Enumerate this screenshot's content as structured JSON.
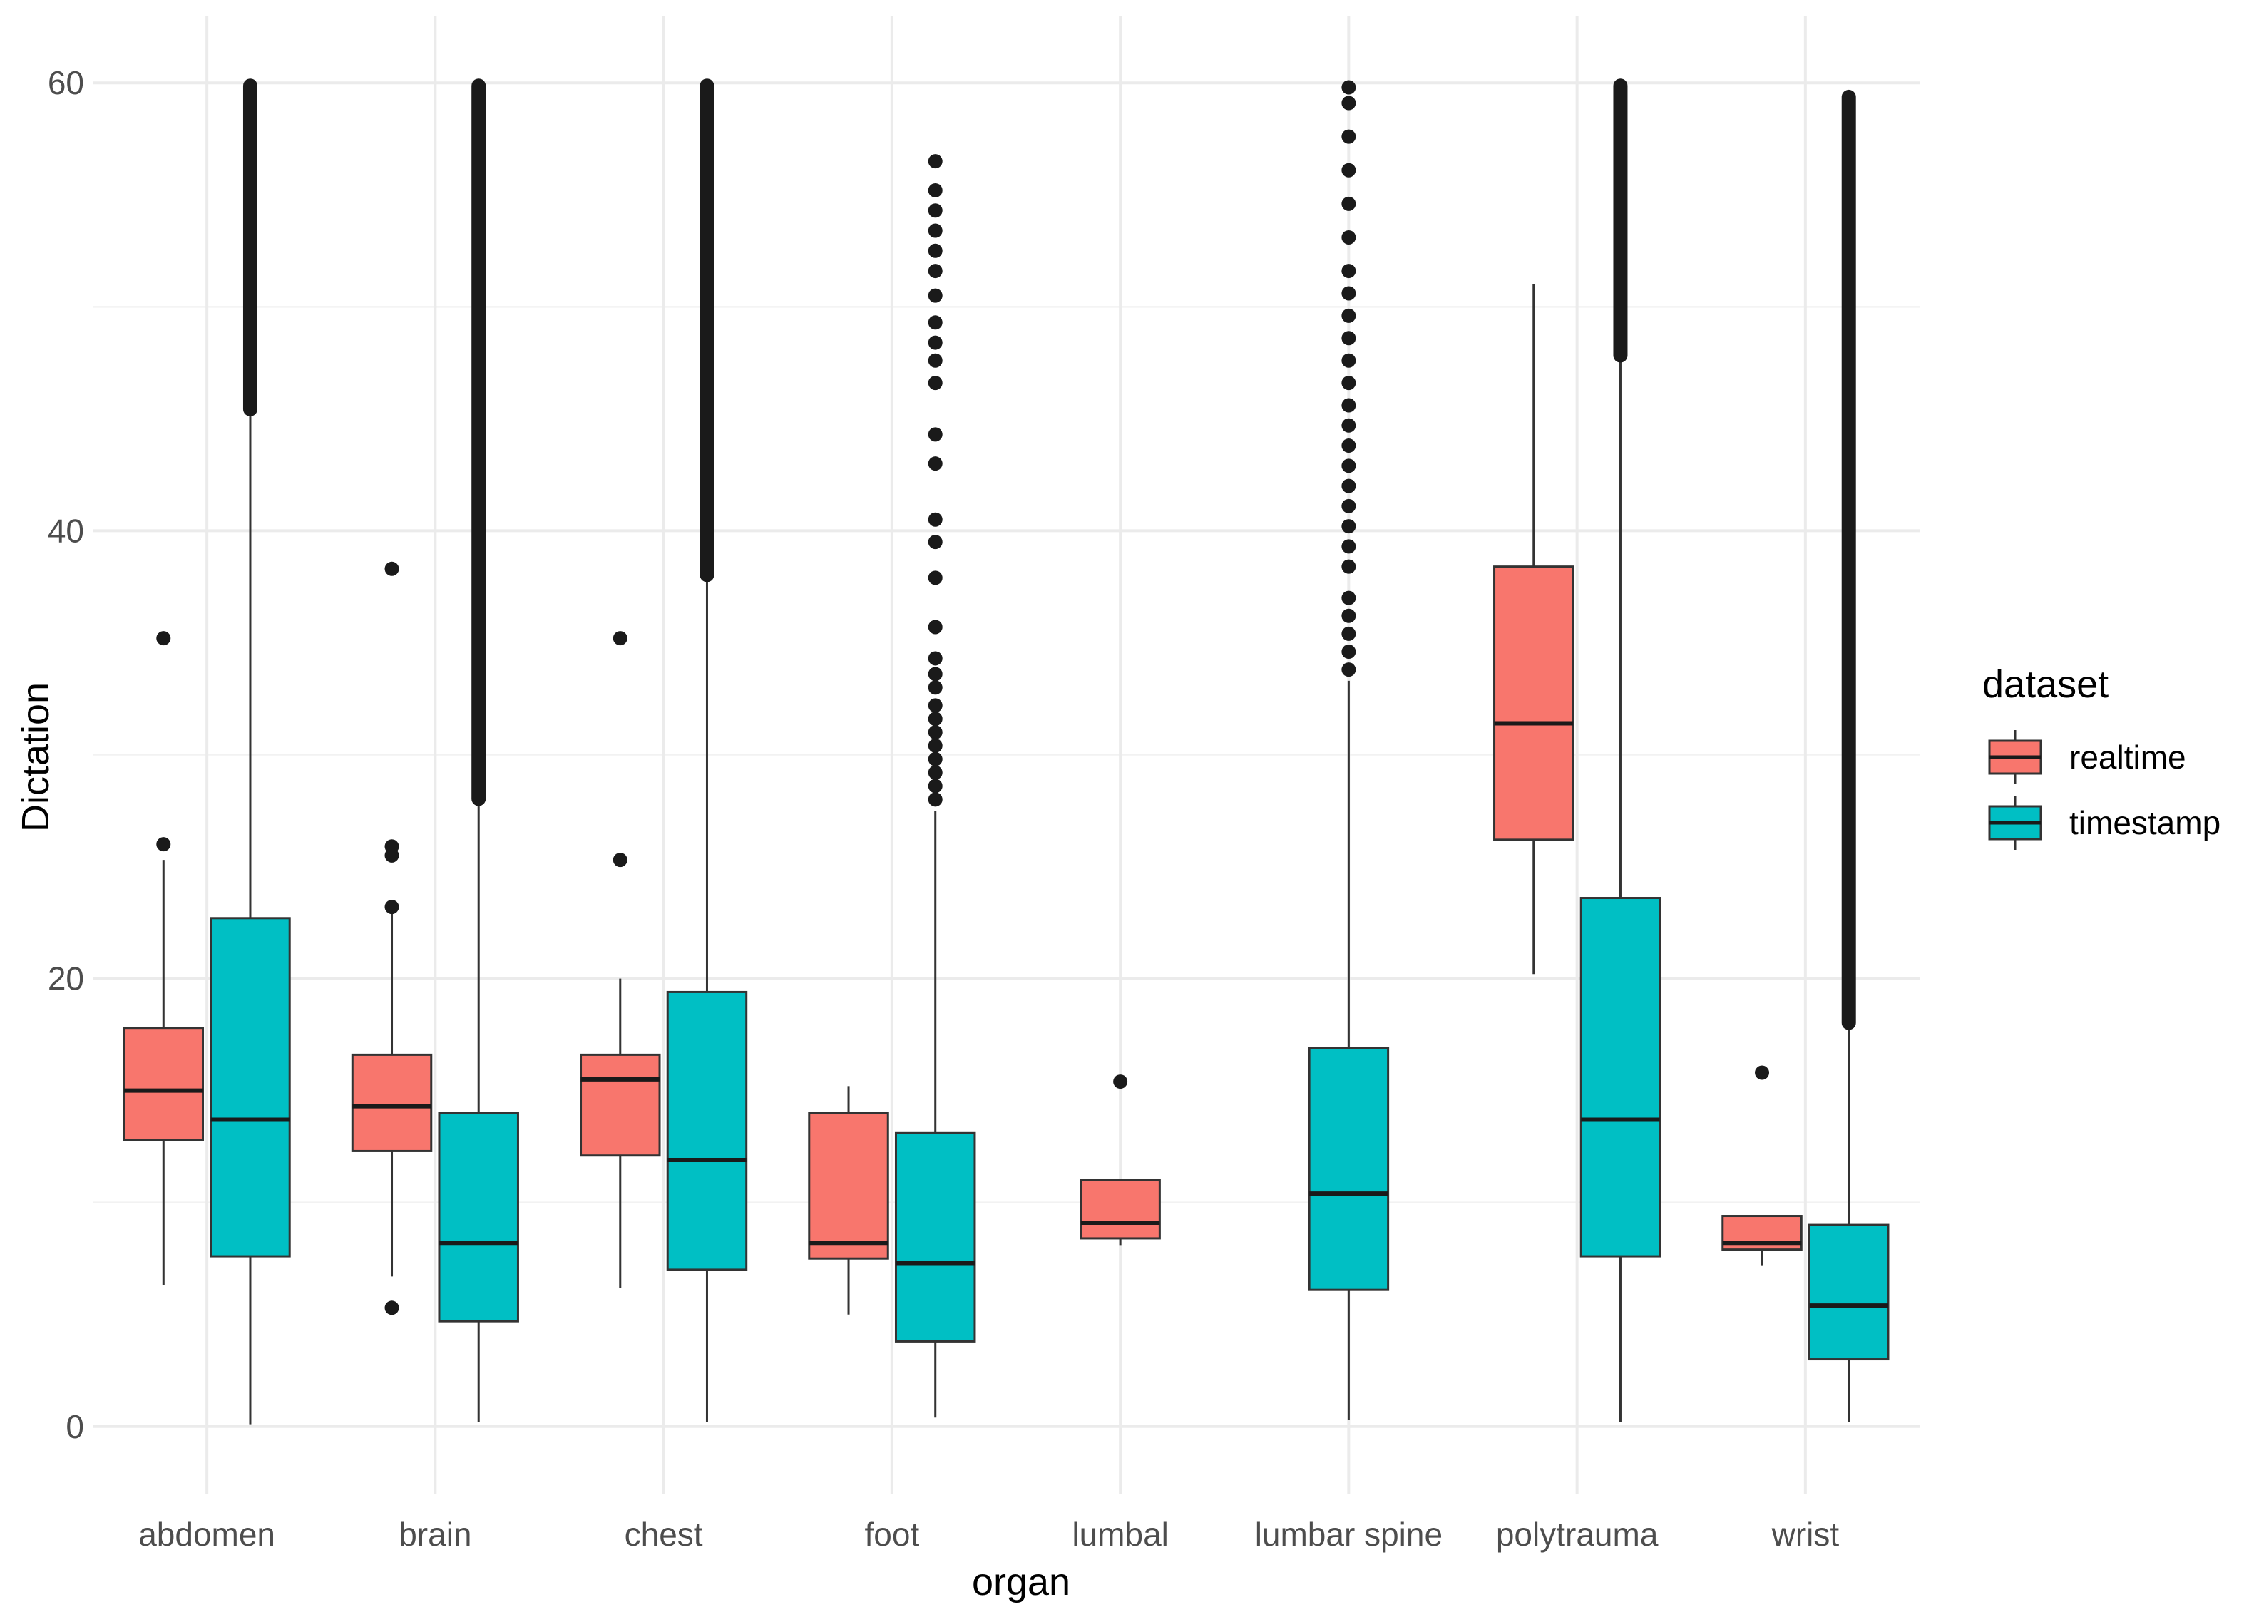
{
  "chart_data": {
    "type": "boxplot",
    "title": "",
    "xlabel": "organ",
    "ylabel": "Dictation",
    "ylim": [
      -3,
      63
    ],
    "yticks": [
      0,
      20,
      40,
      60
    ],
    "grid": true,
    "legend_position": "right",
    "legend": {
      "title": "dataset",
      "entries": [
        {
          "name": "realtime",
          "color": "#F8766D"
        },
        {
          "name": "timestamp",
          "color": "#00BFC4"
        }
      ]
    },
    "categories": [
      "abdomen",
      "brain",
      "chest",
      "foot",
      "lumbal",
      "lumbar spine",
      "polytrauma",
      "wrist"
    ],
    "series": [
      {
        "name": "realtime",
        "color": "#F8766D",
        "boxes": [
          {
            "category": "abdomen",
            "min": 6.3,
            "q1": 12.8,
            "median": 15.0,
            "q3": 17.8,
            "max": 25.3,
            "outliers": [
              26.0,
              35.2
            ]
          },
          {
            "category": "brain",
            "min": 6.7,
            "q1": 12.3,
            "median": 14.3,
            "q3": 16.6,
            "max": 23.2,
            "outliers": [
              5.3,
              23.2,
              25.5,
              25.9,
              38.3
            ]
          },
          {
            "category": "chest",
            "min": 6.2,
            "q1": 12.1,
            "median": 15.5,
            "q3": 16.6,
            "max": 20.0,
            "outliers": [
              25.3,
              35.2
            ]
          },
          {
            "category": "foot",
            "min": 5.0,
            "q1": 7.5,
            "median": 8.2,
            "q3": 14.0,
            "max": 15.2,
            "outliers": []
          },
          {
            "category": "lumbal",
            "min": 8.1,
            "q1": 8.4,
            "median": 9.1,
            "q3": 11.0,
            "max": 11.0,
            "outliers": [
              15.4
            ]
          },
          {
            "category": "polytrauma",
            "min": 20.2,
            "q1": 26.2,
            "median": 31.4,
            "q3": 38.4,
            "max": 51.0,
            "outliers": []
          },
          {
            "category": "wrist",
            "min": 7.2,
            "q1": 7.9,
            "median": 8.2,
            "q3": 9.4,
            "max": 9.4,
            "outliers": [
              15.8
            ]
          }
        ]
      },
      {
        "name": "timestamp",
        "color": "#00BFC4",
        "boxes": [
          {
            "category": "abdomen",
            "min": 0.1,
            "q1": 7.6,
            "median": 13.7,
            "q3": 22.7,
            "max": 45.3,
            "outliers_dense_range": [
              45.3,
              60
            ]
          },
          {
            "category": "brain",
            "min": 0.2,
            "q1": 4.7,
            "median": 8.2,
            "q3": 14.0,
            "max": 27.9,
            "outliers_dense_range": [
              27.9,
              60
            ]
          },
          {
            "category": "chest",
            "min": 0.2,
            "q1": 7.0,
            "median": 11.9,
            "q3": 19.4,
            "max": 37.9,
            "outliers_dense_range": [
              37.9,
              60
            ]
          },
          {
            "category": "foot",
            "min": 0.4,
            "q1": 3.8,
            "median": 7.3,
            "q3": 13.1,
            "max": 27.5,
            "outliers": [
              28.0,
              28.6,
              29.2,
              29.8,
              30.4,
              31.0,
              31.6,
              32.2,
              33.0,
              33.6,
              34.3,
              35.7,
              37.9,
              39.5,
              40.5,
              43.0,
              44.3,
              46.6,
              47.6,
              48.4,
              49.3,
              50.5,
              51.6,
              52.5,
              53.4,
              54.3,
              55.2,
              56.5
            ]
          },
          {
            "category": "lumbar spine",
            "min": 0.3,
            "q1": 6.1,
            "median": 10.4,
            "q3": 16.9,
            "max": 33.3,
            "outliers": [
              33.8,
              34.6,
              35.4,
              36.2,
              37.0,
              38.4,
              39.3,
              40.2,
              41.1,
              42.0,
              42.9,
              43.8,
              44.7,
              45.6,
              46.6,
              47.6,
              48.6,
              49.6,
              50.6,
              51.6,
              53.1,
              54.6,
              56.1,
              57.6,
              59.1,
              59.8
            ]
          },
          {
            "category": "polytrauma",
            "min": 0.2,
            "q1": 7.6,
            "median": 13.7,
            "q3": 23.6,
            "max": 47.7,
            "outliers_dense_range": [
              47.7,
              60
            ]
          },
          {
            "category": "wrist",
            "min": 0.2,
            "q1": 3.0,
            "median": 5.4,
            "q3": 9.0,
            "max": 17.9,
            "outliers_dense_range": [
              17.9,
              59.5
            ]
          }
        ]
      }
    ]
  }
}
